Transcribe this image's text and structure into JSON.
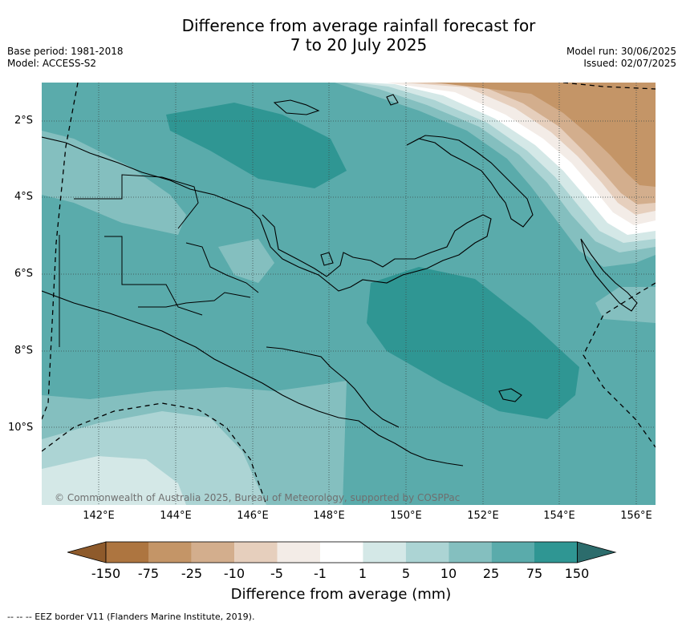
{
  "title": {
    "line1": "Difference from average rainfall forecast for",
    "line2": "7 to 20 July 2025"
  },
  "meta": {
    "base_period": "Base period: 1981-2018",
    "model": "Model: ACCESS-S2",
    "model_run": "Model run: 30/06/2025",
    "issued": "Issued: 02/07/2025"
  },
  "axes": {
    "lat_labels": [
      "2°S",
      "4°S",
      "6°S",
      "8°S",
      "10°S"
    ],
    "lon_labels": [
      "142°E",
      "144°E",
      "146°E",
      "148°E",
      "150°E",
      "152°E",
      "154°E",
      "156°E"
    ],
    "gridlines": "dotted"
  },
  "copyright": "© Commonwealth of Australia 2025, Bureau of Meteorology, supported by COSPPac",
  "colorbar": {
    "tick_labels": [
      "-150",
      "-75",
      "-25",
      "-10",
      "-5",
      "-1",
      "1",
      "5",
      "10",
      "25",
      "75",
      "150"
    ],
    "colors": [
      "#8e5a2b",
      "#ad7540",
      "#c49567",
      "#d3ae8d",
      "#e6cfbd",
      "#f3ece7",
      "#ffffff",
      "#d4e8e7",
      "#acd4d4",
      "#84bfbf",
      "#5aabab",
      "#2f9693",
      "#2c6c6c"
    ],
    "label": "Difference from average (mm)"
  },
  "footer": "-- -- -- EEZ border V11 (Flanders Marine Institute, 2019)."
}
